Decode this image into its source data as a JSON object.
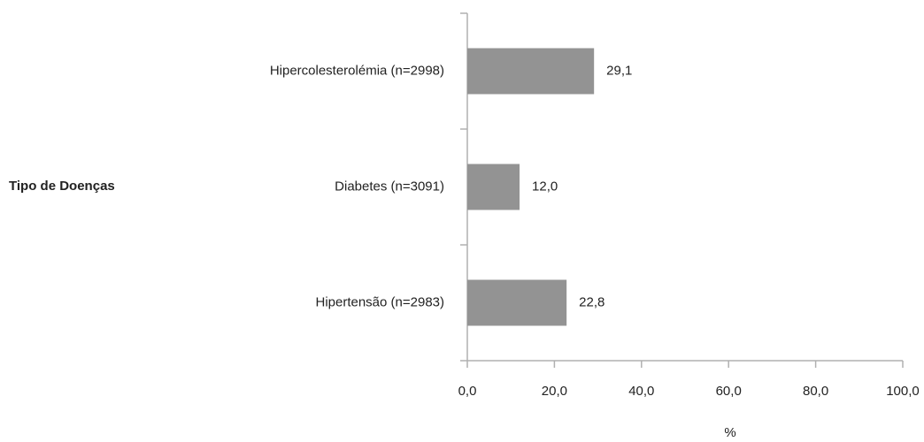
{
  "chart_data": {
    "type": "barh",
    "categories": [
      "Hipercolesterolémia (n=2998)",
      "Diabetes (n=3091)",
      "Hipertensão (n=2983)"
    ],
    "values": [
      29.1,
      12.0,
      22.8
    ],
    "value_labels": [
      "29,1",
      "12,0",
      "22,8"
    ],
    "color": "#939393",
    "xlim": [
      0,
      100
    ],
    "xticks": [
      {
        "value": 0,
        "label": "0,0"
      },
      {
        "value": 20,
        "label": "20,0"
      },
      {
        "value": 40,
        "label": "40,0"
      },
      {
        "value": 60,
        "label": "60,0"
      },
      {
        "value": 80,
        "label": "80,0"
      },
      {
        "value": 100,
        "label": "100,0"
      }
    ],
    "xlabel": "%",
    "ylabel": "Tipo de Doenças",
    "grid": false
  }
}
